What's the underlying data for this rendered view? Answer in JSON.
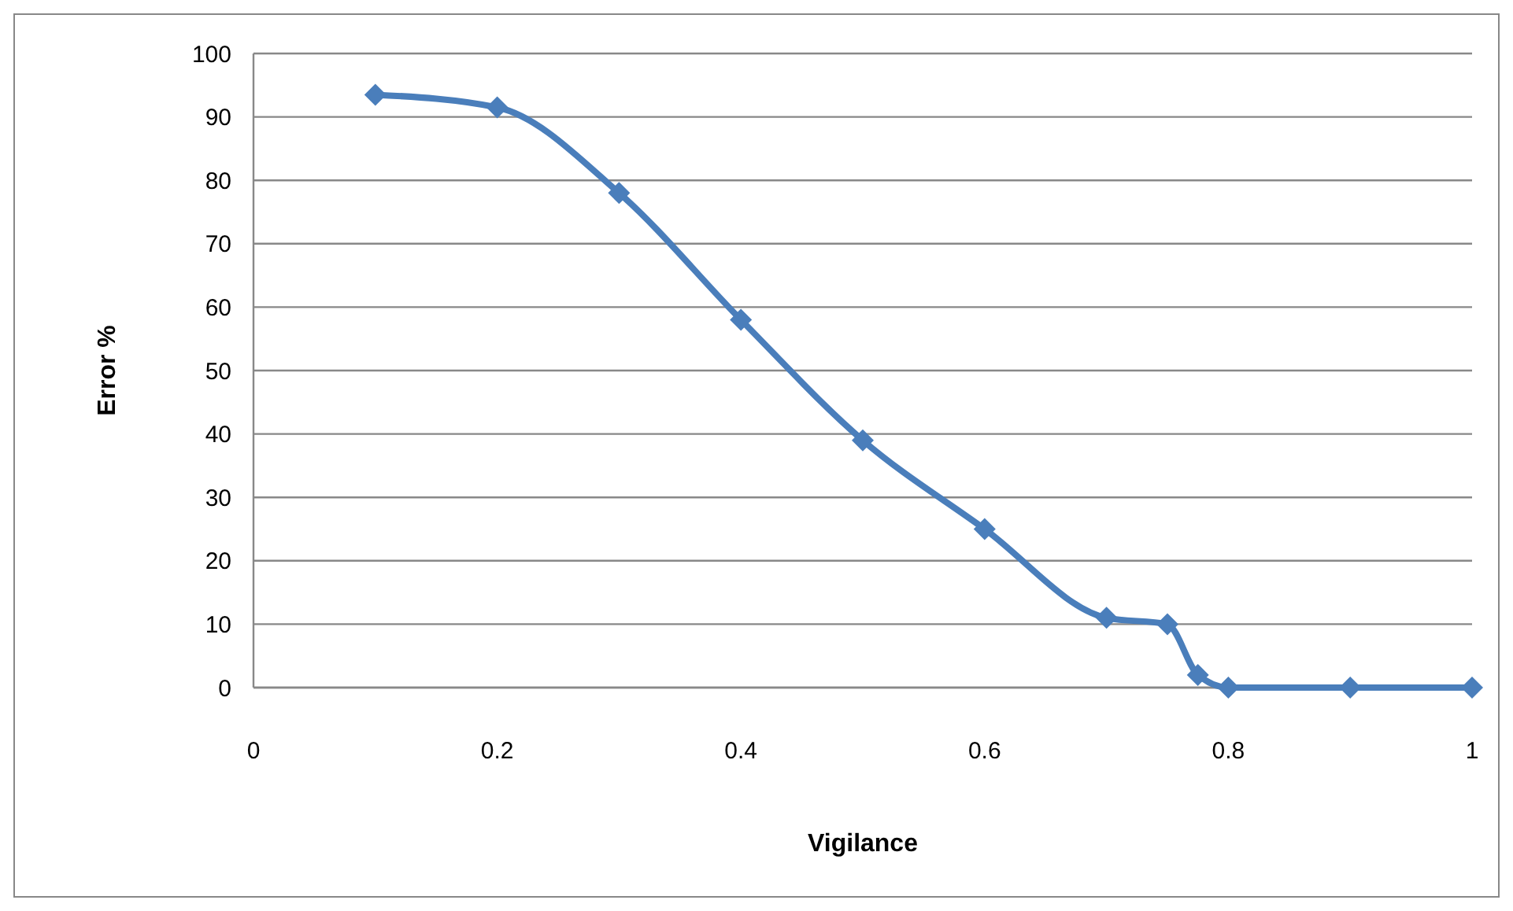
{
  "chart_data": {
    "type": "line",
    "xlabel": "Vigilance",
    "ylabel": "Error %",
    "x": [
      0.1,
      0.2,
      0.3,
      0.4,
      0.5,
      0.6,
      0.7,
      0.75,
      0.775,
      0.8,
      0.9,
      1
    ],
    "series": [
      {
        "color": "#4a7ebb",
        "values": [
          93.5,
          91.5,
          78,
          58,
          39,
          25,
          11,
          10,
          2,
          0,
          0,
          0
        ]
      }
    ],
    "xlim": [
      0,
      1
    ],
    "xticks": [
      0,
      0.2,
      0.4,
      0.6,
      0.8,
      1
    ],
    "ylim": [
      0,
      100
    ],
    "yticks": [
      0,
      10,
      20,
      30,
      40,
      50,
      60,
      70,
      80,
      90,
      100
    ],
    "grid": "y",
    "marker": "diamond",
    "line_style": "solid"
  }
}
